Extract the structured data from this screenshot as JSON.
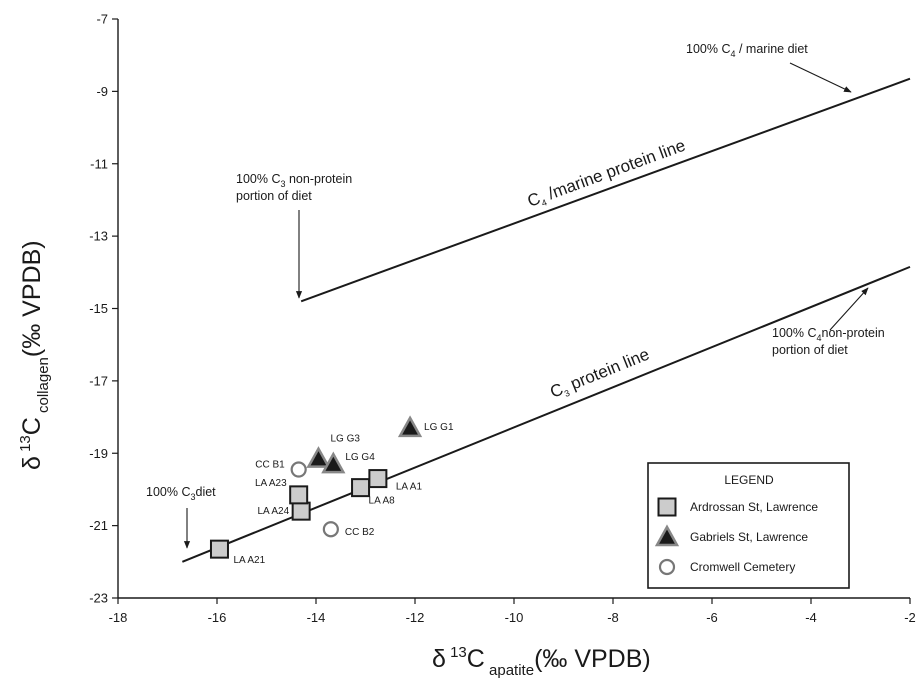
{
  "chart_data": {
    "type": "scatter",
    "xlabel": {
      "main": "δ",
      "sup": "13",
      "c": "C",
      "sub": "apatite",
      "unit": "(‰ VPDB)"
    },
    "ylabel": {
      "main": "δ",
      "sup": "13",
      "c": "C",
      "sub": "collagen",
      "unit": "(‰ VPDB)"
    },
    "xlim": [
      -18,
      -2
    ],
    "ylim": [
      -23,
      -7
    ],
    "x_ticks": [
      "-18",
      "-16",
      "-14",
      "-12",
      "-10",
      "-8",
      "-6",
      "-4",
      "-2"
    ],
    "y_ticks": [
      "-7",
      "-9",
      "-11",
      "-13",
      "-15",
      "-17",
      "-19",
      "-21",
      "-23"
    ],
    "lines": [
      {
        "id": "c3",
        "label_pre": "C",
        "label_sub": "3",
        "label_post": " protein line",
        "x": [
          -16.7,
          -2
        ],
        "y": [
          -22.0,
          -13.85
        ]
      },
      {
        "id": "c4",
        "label_pre": "C",
        "label_sub": "4",
        "label_post": " /marine protein line",
        "x": [
          -14.3,
          -2
        ],
        "y": [
          -14.8,
          -8.65
        ]
      }
    ],
    "series": [
      {
        "name": "Ardrossan St, Lawrence",
        "marker": "square",
        "color": "#cccccc",
        "points": [
          {
            "label": "LA A21",
            "x": -15.95,
            "y": -21.65
          },
          {
            "label": "LA A24",
            "x": -14.3,
            "y": -20.6
          },
          {
            "label": "LA A23",
            "x": -14.35,
            "y": -20.15
          },
          {
            "label": "LA A8",
            "x": -13.1,
            "y": -19.95
          },
          {
            "label": "LA A1",
            "x": -12.75,
            "y": -19.7
          }
        ]
      },
      {
        "name": "Gabriels St, Lawrence",
        "marker": "triangle",
        "color": "#1a1a1a",
        "points": [
          {
            "label": "LG G1",
            "x": -12.1,
            "y": -18.3
          },
          {
            "label": "LG G3",
            "x": -13.95,
            "y": -19.15
          },
          {
            "label": "LG G4",
            "x": -13.65,
            "y": -19.3
          }
        ]
      },
      {
        "name": "Cromwell Cemetery",
        "marker": "circle",
        "color": "#ffffff",
        "points": [
          {
            "label": "CC B1",
            "x": -14.35,
            "y": -19.45
          },
          {
            "label": "CC B2",
            "x": -13.7,
            "y": -21.1
          }
        ]
      }
    ],
    "annotations": [
      {
        "id": "c4marine",
        "lines": [
          {
            "pre": "100% C",
            "sub": "4",
            "post": " / marine diet"
          }
        ]
      },
      {
        "id": "c3nonprot",
        "lines": [
          {
            "pre": "100% C",
            "sub": "3",
            "post": " non-protein"
          },
          {
            "pre": "portion of diet"
          }
        ]
      },
      {
        "id": "c4nonprot",
        "lines": [
          {
            "pre": "100% C",
            "sub": "4",
            "post": "non-protein"
          },
          {
            "pre": "portion of diet"
          }
        ]
      },
      {
        "id": "c3diet",
        "lines": [
          {
            "pre": "100% C",
            "sub": "3",
            "post": "diet"
          }
        ]
      }
    ],
    "legend": {
      "title": "LEGEND",
      "placement": "bottom-right"
    }
  }
}
